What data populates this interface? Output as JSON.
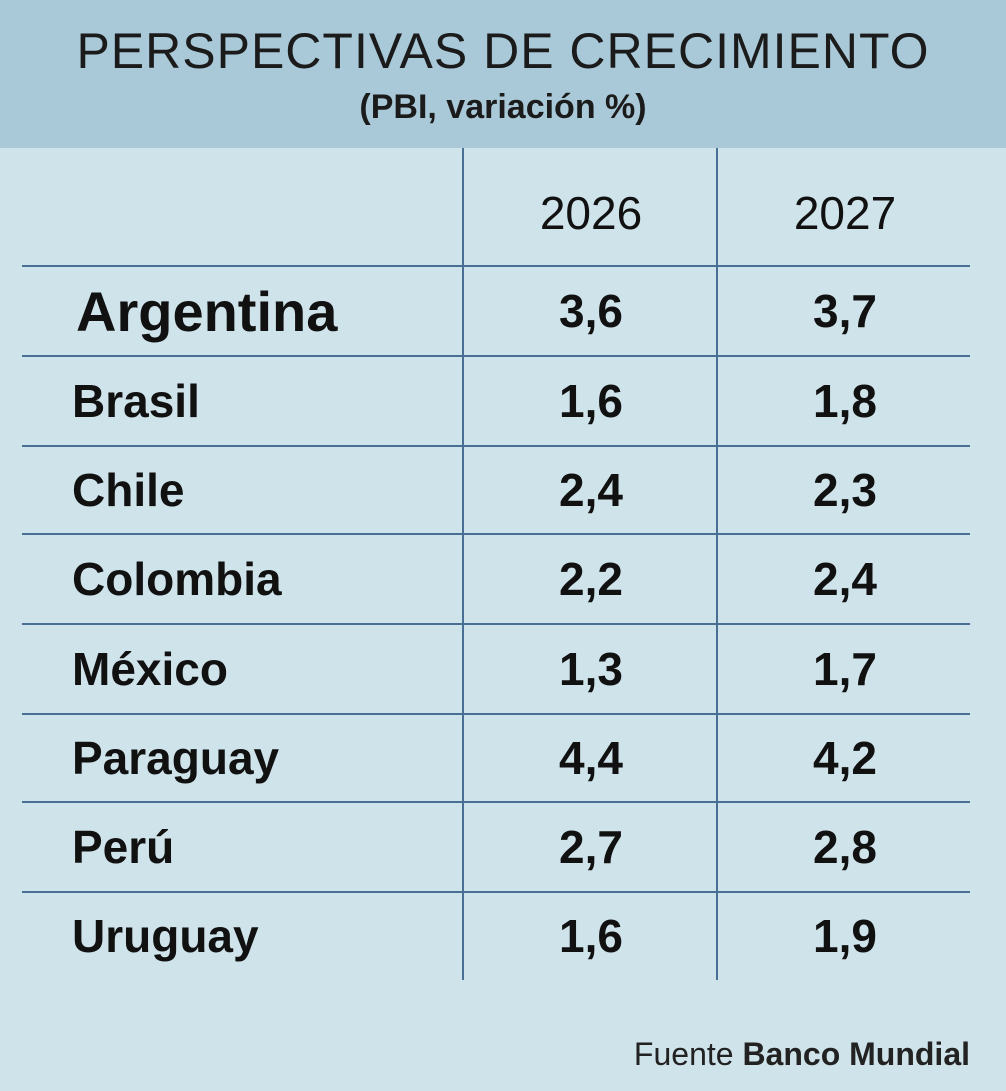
{
  "chart_data": {
    "type": "table",
    "title": "PERSPECTIVAS DE CRECIMIENTO",
    "subtitle": "(PBI, variación %)",
    "columns": [
      "2026",
      "2027"
    ],
    "rows": [
      {
        "country": "Argentina",
        "values": [
          "3,6",
          "3,7"
        ],
        "highlight": true
      },
      {
        "country": "Brasil",
        "values": [
          "1,6",
          "1,8"
        ]
      },
      {
        "country": "Chile",
        "values": [
          "2,4",
          "2,3"
        ]
      },
      {
        "country": "Colombia",
        "values": [
          "2,2",
          "2,4"
        ]
      },
      {
        "country": "México",
        "values": [
          "1,3",
          "1,7"
        ]
      },
      {
        "country": "Paraguay",
        "values": [
          "4,4",
          "4,2"
        ]
      },
      {
        "country": "Perú",
        "values": [
          "2,7",
          "2,8"
        ]
      },
      {
        "country": "Uruguay",
        "values": [
          "1,6",
          "1,9"
        ]
      }
    ],
    "source_prefix": "Fuente",
    "source_name": "Banco Mundial"
  },
  "colors": {
    "header_bg": "#a9c9d8",
    "body_bg": "#cfe3ea",
    "grid": "#4a6f95"
  }
}
